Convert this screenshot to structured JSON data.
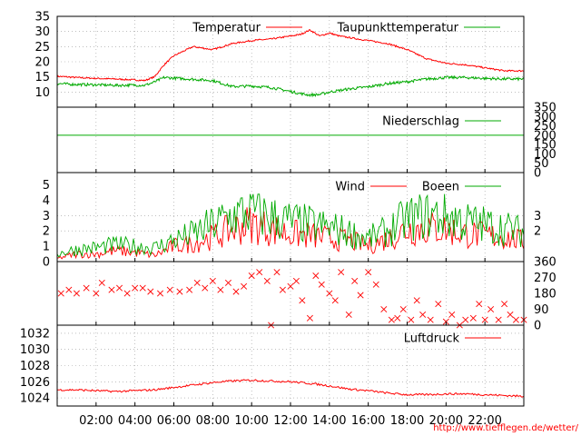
{
  "colors": {
    "temp": "#ff0000",
    "dew": "#00aa00",
    "precip": "#00aa00",
    "wind": "#ff0000",
    "gust": "#00aa00",
    "dir": "#ff0000",
    "pressure": "#ff0000"
  },
  "url_text": "http://www.tiefflegen.de/wetter/",
  "chart_data": [
    {
      "type": "line",
      "name": "temperature",
      "x_hours": [
        0,
        1,
        2,
        3,
        4,
        4.5,
        5,
        5.5,
        6,
        7,
        8,
        9,
        10,
        11,
        12,
        12.5,
        13,
        13.5,
        14,
        14.5,
        15,
        16,
        17,
        18,
        19,
        20,
        21,
        22,
        23,
        24
      ],
      "series": [
        {
          "name": "Temperatur",
          "color": "#ff0000",
          "values": [
            15.2,
            14.8,
            14.5,
            14.3,
            14,
            13.8,
            15,
            19,
            22,
            25,
            24,
            26,
            27,
            27.5,
            28.5,
            29,
            30.5,
            28.5,
            29.5,
            28.5,
            28,
            27,
            26,
            24,
            21,
            19.5,
            19,
            18,
            17,
            17
          ]
        },
        {
          "name": "Taupunkttemperatur",
          "color": "#00aa00",
          "values": [
            12.8,
            12.5,
            12.4,
            12.2,
            12.3,
            12.2,
            13.3,
            14.8,
            14.6,
            14.2,
            13.8,
            11.8,
            12,
            11.5,
            10.2,
            9.5,
            9,
            9.2,
            10,
            10.5,
            11,
            11.7,
            12.8,
            13.4,
            14.3,
            14.8,
            14.8,
            14.5,
            14.3,
            14.3
          ]
        }
      ],
      "yticks": [
        10,
        15,
        20,
        25,
        30,
        35
      ],
      "ylim": [
        5,
        35
      ]
    },
    {
      "type": "line",
      "name": "precipitation",
      "series": [
        {
          "name": "Niederschlag",
          "color": "#00aa00",
          "values": [
            200,
            200
          ]
        }
      ],
      "yticks_right": [
        0,
        50,
        100,
        150,
        200,
        250,
        300,
        350
      ],
      "ylim": [
        0,
        350
      ]
    },
    {
      "type": "line",
      "name": "wind",
      "x_hours": [
        0,
        1,
        2,
        3,
        4,
        5,
        6,
        7,
        8,
        9,
        10,
        11,
        12,
        13,
        14,
        15,
        16,
        17,
        18,
        19,
        20,
        21,
        22,
        23,
        24
      ],
      "series": [
        {
          "name": "Wind",
          "color": "#ff0000",
          "values": [
            0.2,
            0.5,
            0.5,
            0.7,
            0.6,
            0.4,
            1,
            1.2,
            1.6,
            2.1,
            2.5,
            2.1,
            1.8,
            1.7,
            1.5,
            1.4,
            1,
            1.5,
            2.1,
            2.2,
            2.1,
            1.8,
            1.7,
            1.6,
            1.3
          ]
        },
        {
          "name": "Boeen",
          "color": "#00aa00",
          "values": [
            0.5,
            0.8,
            0.9,
            1.1,
            1,
            0.9,
            1.4,
            1.8,
            2.4,
            3,
            3.3,
            2.9,
            2.6,
            2.4,
            2.2,
            1.9,
            1.5,
            2,
            2.8,
            3,
            3,
            2.6,
            2.4,
            2.2,
            1.9
          ]
        }
      ],
      "yticks": [
        0,
        1,
        2,
        3,
        4,
        5
      ],
      "yticks_right": [
        2,
        3
      ],
      "ylim": [
        0,
        5.8
      ]
    },
    {
      "type": "scatter",
      "name": "wind_direction",
      "points": [
        [
          0.2,
          180
        ],
        [
          0.6,
          200
        ],
        [
          1,
          180
        ],
        [
          1.5,
          210
        ],
        [
          2,
          180
        ],
        [
          2.3,
          240
        ],
        [
          2.8,
          200
        ],
        [
          3.2,
          210
        ],
        [
          3.6,
          180
        ],
        [
          4,
          210
        ],
        [
          4.4,
          210
        ],
        [
          4.8,
          190
        ],
        [
          5.3,
          180
        ],
        [
          5.8,
          200
        ],
        [
          6.3,
          190
        ],
        [
          6.8,
          200
        ],
        [
          7.2,
          240
        ],
        [
          7.6,
          210
        ],
        [
          8,
          250
        ],
        [
          8.4,
          200
        ],
        [
          8.8,
          240
        ],
        [
          9.2,
          190
        ],
        [
          9.6,
          220
        ],
        [
          10,
          280
        ],
        [
          10.4,
          300
        ],
        [
          10.8,
          250
        ],
        [
          11,
          0
        ],
        [
          11.3,
          300
        ],
        [
          11.6,
          200
        ],
        [
          12,
          220
        ],
        [
          12.3,
          250
        ],
        [
          12.6,
          140
        ],
        [
          13,
          40
        ],
        [
          13.3,
          280
        ],
        [
          13.6,
          230
        ],
        [
          14,
          180
        ],
        [
          14.3,
          140
        ],
        [
          14.6,
          300
        ],
        [
          15,
          60
        ],
        [
          15.3,
          250
        ],
        [
          15.6,
          170
        ],
        [
          16,
          300
        ],
        [
          16.4,
          230
        ],
        [
          16.8,
          90
        ],
        [
          17.2,
          30
        ],
        [
          17.5,
          40
        ],
        [
          17.8,
          90
        ],
        [
          18.2,
          30
        ],
        [
          18.5,
          140
        ],
        [
          18.8,
          60
        ],
        [
          19.2,
          30
        ],
        [
          19.6,
          120
        ],
        [
          20,
          20
        ],
        [
          20.3,
          60
        ],
        [
          20.7,
          0
        ],
        [
          21,
          30
        ],
        [
          21.4,
          40
        ],
        [
          21.7,
          120
        ],
        [
          22,
          30
        ],
        [
          22.3,
          90
        ],
        [
          22.7,
          30
        ],
        [
          23,
          120
        ],
        [
          23.3,
          60
        ],
        [
          23.6,
          30
        ],
        [
          24,
          30
        ]
      ],
      "yticks_right": [
        0,
        90,
        180,
        270,
        360
      ],
      "ylim": [
        0,
        360
      ]
    },
    {
      "type": "line",
      "name": "pressure",
      "x_hours": [
        0,
        1,
        2,
        3,
        4,
        5,
        6,
        7,
        8,
        9,
        10,
        11,
        12,
        13,
        14,
        15,
        16,
        17,
        18,
        19,
        20,
        21,
        22,
        23,
        24
      ],
      "series": [
        {
          "name": "Luftdruck",
          "color": "#ff0000",
          "values": [
            1025,
            1025,
            1024.9,
            1024.8,
            1024.9,
            1025,
            1025.3,
            1025.6,
            1025.9,
            1026.1,
            1026.2,
            1026.1,
            1026,
            1025.8,
            1025.5,
            1025.1,
            1024.9,
            1024.6,
            1024.4,
            1024.4,
            1024.5,
            1024.5,
            1024.4,
            1024.3,
            1024.2
          ]
        }
      ],
      "yticks": [
        1024,
        1026,
        1028,
        1030,
        1032
      ],
      "ylim": [
        1023,
        1033
      ]
    }
  ],
  "xaxis": {
    "ticks": [
      "02:00",
      "04:00",
      "06:00",
      "08:00",
      "10:00",
      "12:00",
      "14:00",
      "16:00",
      "18:00",
      "20:00",
      "22:00"
    ],
    "tick_hours": [
      2,
      4,
      6,
      8,
      10,
      12,
      14,
      16,
      18,
      20,
      22
    ],
    "range_hours": [
      0,
      24
    ]
  }
}
